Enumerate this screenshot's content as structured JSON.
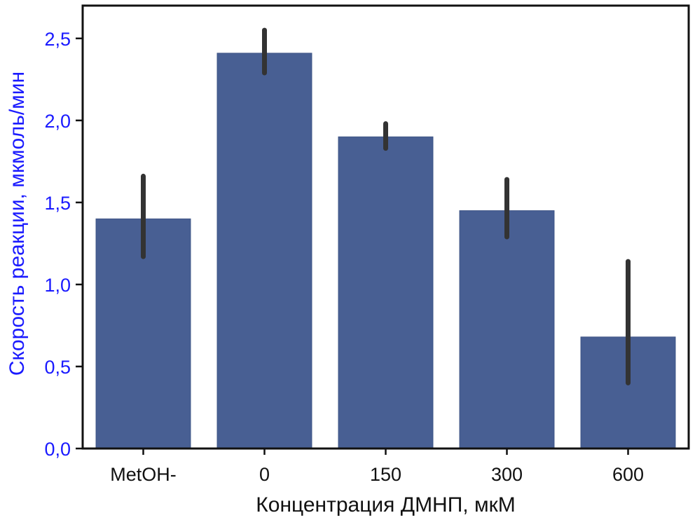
{
  "chart_data": {
    "type": "bar",
    "categories": [
      "MetOH-",
      "0",
      "150",
      "300",
      "600"
    ],
    "values": [
      1.4,
      2.41,
      1.9,
      1.45,
      0.68
    ],
    "error_bars": [
      {
        "low": 1.17,
        "high": 1.66
      },
      {
        "low": 2.29,
        "high": 2.55
      },
      {
        "low": 1.83,
        "high": 1.98
      },
      {
        "low": 1.29,
        "high": 1.64
      },
      {
        "low": 0.4,
        "high": 1.14
      }
    ],
    "ylim": [
      0,
      2.7
    ],
    "yticks": [
      0,
      0.5,
      1.0,
      1.5,
      2.0,
      2.5
    ],
    "ytick_labels": [
      "0,0",
      "0,5",
      "1,0",
      "1,5",
      "2,0",
      "2,5"
    ],
    "xlabel": "Концентрация ДМНП, мкМ",
    "ylabel": "Скорость реакции, мкмоль/мин",
    "grid": false,
    "legend": "none"
  },
  "colors": {
    "bar": "#485f93",
    "error_bar": "#333333",
    "ylabel": "#1a1aff",
    "ytick_labels": "#1a1aff",
    "xlabel": "#111111",
    "frame": "#111111"
  }
}
